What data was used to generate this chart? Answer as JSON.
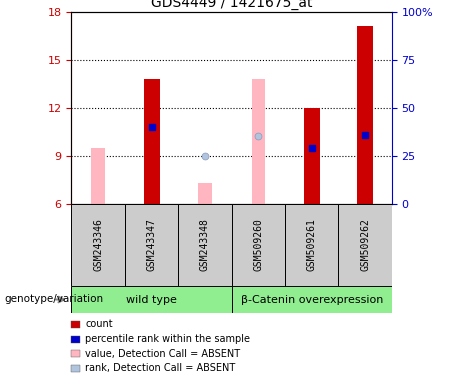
{
  "title": "GDS4449 / 1421675_at",
  "samples": [
    "GSM243346",
    "GSM243347",
    "GSM243348",
    "GSM509260",
    "GSM509261",
    "GSM509262"
  ],
  "ylim_left": [
    6,
    18
  ],
  "ylim_right": [
    0,
    100
  ],
  "yticks_left": [
    6,
    9,
    12,
    15,
    18
  ],
  "yticks_right": [
    0,
    25,
    50,
    75,
    100
  ],
  "ytick_labels_right": [
    "0",
    "25",
    "50",
    "75",
    "100%"
  ],
  "red_bars": [
    null,
    13.8,
    null,
    null,
    12.0,
    17.1
  ],
  "pink_bars": [
    9.5,
    null,
    7.3,
    13.8,
    null,
    null
  ],
  "blue_squares_y": [
    null,
    10.8,
    null,
    null,
    9.5,
    10.3
  ],
  "light_blue_y": [
    null,
    null,
    9.0,
    10.2,
    null,
    null
  ],
  "bar_base": 6,
  "group1_label": "wild type",
  "group2_label": "β-Catenin overexpression",
  "group_color": "#90ee90",
  "sample_box_color": "#cccccc",
  "legend_items": [
    {
      "color": "#cc0000",
      "marker": "s",
      "label": "count"
    },
    {
      "color": "#0000cc",
      "marker": "s",
      "label": "percentile rank within the sample"
    },
    {
      "color": "#ffb6c1",
      "marker": "s",
      "label": "value, Detection Call = ABSENT"
    },
    {
      "color": "#b0c4de",
      "marker": "s",
      "label": "rank, Detection Call = ABSENT"
    }
  ],
  "left_axis_color": "#cc0000",
  "right_axis_color": "#0000cc",
  "bg_color": "#ffffff",
  "bar_width": 0.3,
  "genotype_label": "genotype/variation"
}
